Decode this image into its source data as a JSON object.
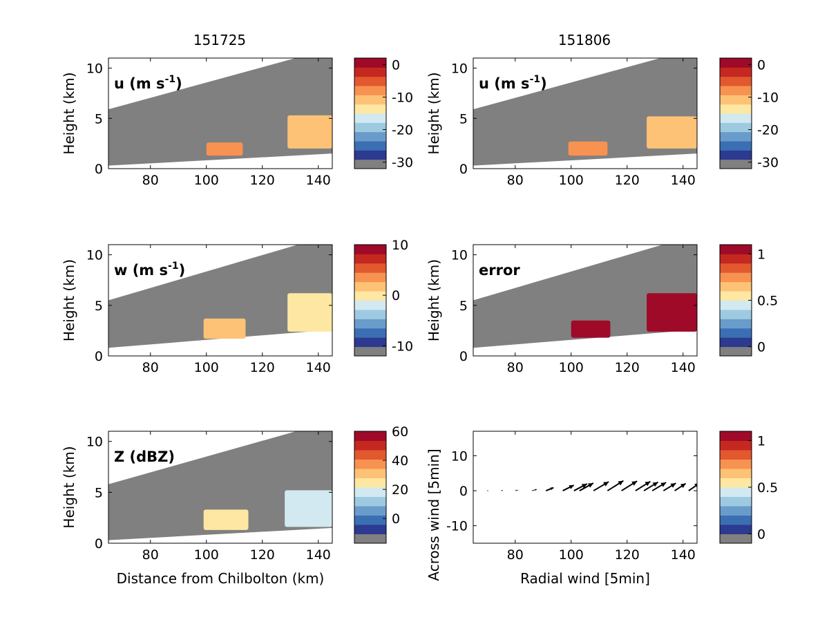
{
  "figure": {
    "column_titles": [
      "151725",
      "151806"
    ]
  },
  "colors": {
    "masked_gray": "#808080",
    "colormap": [
      "#808080",
      "#2c3a8f",
      "#3b6fb3",
      "#6a9ccb",
      "#9ecae1",
      "#d2e9f1",
      "#fde7a2",
      "#fdc276",
      "#f79250",
      "#e2582f",
      "#c4281f",
      "#9e0a28"
    ]
  },
  "chart_data": [
    {
      "type": "heatmap",
      "id": "u_151725",
      "column": "151725",
      "label": "u (m s",
      "label_sup": "-1",
      "label_close": ")",
      "ylabel": "Height (km)",
      "xlabel": "",
      "xlim": [
        65,
        145
      ],
      "ylim": [
        0,
        11
      ],
      "xticks": [
        "80",
        "100",
        "120",
        "140"
      ],
      "yticks": [
        "0",
        "5",
        "10"
      ],
      "colorbar_ticks": [
        "0",
        "-10",
        "-20",
        "-30"
      ],
      "colorbar_range": [
        -32,
        2
      ],
      "colorbar_tick_values": [
        0,
        -10,
        -20,
        -30
      ],
      "beam_bottom": [
        [
          65,
          0.3
        ],
        [
          145,
          1.5
        ]
      ],
      "beam_top": [
        [
          65,
          5.9
        ],
        [
          145,
          12.0
        ]
      ],
      "echoes": [
        {
          "x": [
            100,
            113
          ],
          "y": [
            1.3,
            2.6
          ],
          "value": -9
        },
        {
          "x": [
            129,
            145
          ],
          "y": [
            2.0,
            5.3
          ],
          "value": -12
        }
      ]
    },
    {
      "type": "heatmap",
      "id": "u_151806",
      "column": "151806",
      "label": "u (m s",
      "label_sup": "-1",
      "label_close": ")",
      "ylabel": "Height (km)",
      "xlabel": "",
      "xlim": [
        65,
        145
      ],
      "ylim": [
        0,
        11
      ],
      "xticks": [
        "80",
        "100",
        "120",
        "140"
      ],
      "yticks": [
        "0",
        "5",
        "10"
      ],
      "colorbar_ticks": [
        "0",
        "-10",
        "-20",
        "-30"
      ],
      "colorbar_range": [
        -32,
        2
      ],
      "colorbar_tick_values": [
        0,
        -10,
        -20,
        -30
      ],
      "beam_bottom": [
        [
          65,
          0.3
        ],
        [
          145,
          1.5
        ]
      ],
      "beam_top": [
        [
          65,
          5.9
        ],
        [
          145,
          12.0
        ]
      ],
      "echoes": [
        {
          "x": [
            99,
            113
          ],
          "y": [
            1.3,
            2.7
          ],
          "value": -9
        },
        {
          "x": [
            127,
            145
          ],
          "y": [
            2.0,
            5.2
          ],
          "value": -12
        }
      ]
    },
    {
      "type": "heatmap",
      "id": "w_151725",
      "column": "151725",
      "label": "w (m s",
      "label_sup": "-1",
      "label_close": ")",
      "ylabel": "Height (km)",
      "xlabel": "",
      "xlim": [
        65,
        145
      ],
      "ylim": [
        0,
        11
      ],
      "xticks": [
        "80",
        "100",
        "120",
        "140"
      ],
      "yticks": [
        "0",
        "5",
        "10"
      ],
      "colorbar_ticks": [
        "10",
        "0",
        "-10"
      ],
      "colorbar_range": [
        -12,
        10
      ],
      "colorbar_tick_values": [
        10,
        0,
        -10
      ],
      "beam_bottom": [
        [
          65,
          0.8
        ],
        [
          145,
          2.6
        ]
      ],
      "beam_top": [
        [
          65,
          5.5
        ],
        [
          145,
          12.0
        ]
      ],
      "echoes": [
        {
          "x": [
            99,
            114
          ],
          "y": [
            1.7,
            3.7
          ],
          "value": 0
        },
        {
          "x": [
            129,
            145
          ],
          "y": [
            2.4,
            6.2
          ],
          "value": -2
        }
      ]
    },
    {
      "type": "heatmap",
      "id": "error_151806",
      "column": "151806",
      "label": "error",
      "label_sup": "",
      "label_close": "",
      "ylabel": "Height (km)",
      "xlabel": "",
      "xlim": [
        65,
        145
      ],
      "ylim": [
        0,
        11
      ],
      "xticks": [
        "80",
        "100",
        "120",
        "140"
      ],
      "yticks": [
        "0",
        "5",
        "10"
      ],
      "colorbar_ticks": [
        "1",
        "0.5",
        "0"
      ],
      "colorbar_range": [
        -0.1,
        1.1
      ],
      "colorbar_tick_values": [
        1,
        0.5,
        0
      ],
      "beam_bottom": [
        [
          65,
          0.8
        ],
        [
          145,
          2.6
        ]
      ],
      "beam_top": [
        [
          65,
          5.5
        ],
        [
          145,
          12.0
        ]
      ],
      "echoes": [
        {
          "x": [
            100,
            114
          ],
          "y": [
            1.8,
            3.5
          ],
          "value": 1
        },
        {
          "x": [
            127,
            145
          ],
          "y": [
            2.4,
            6.2
          ],
          "value": 1
        }
      ]
    },
    {
      "type": "heatmap",
      "id": "Z_151725",
      "column": "151725",
      "label": "Z (dBZ)",
      "label_sup": "",
      "label_close": "",
      "ylabel": "Height (km)",
      "xlabel": "Distance from Chilbolton (km)",
      "xlim": [
        65,
        145
      ],
      "ylim": [
        0,
        11
      ],
      "xticks": [
        "80",
        "100",
        "120",
        "140"
      ],
      "yticks": [
        "0",
        "5",
        "10"
      ],
      "colorbar_ticks": [
        "60",
        "40",
        "20",
        "0"
      ],
      "colorbar_range": [
        -17,
        60
      ],
      "colorbar_tick_values": [
        60,
        40,
        20,
        0
      ],
      "beam_bottom": [
        [
          65,
          0.3
        ],
        [
          145,
          1.5
        ]
      ],
      "beam_top": [
        [
          65,
          5.8
        ],
        [
          145,
          12.0
        ]
      ],
      "echoes": [
        {
          "x": [
            99,
            115
          ],
          "y": [
            1.3,
            3.3
          ],
          "value": 18
        },
        {
          "x": [
            128,
            145
          ],
          "y": [
            1.6,
            5.2
          ],
          "value": 15
        }
      ]
    },
    {
      "type": "scatter",
      "id": "wind_vectors",
      "column": "151806",
      "label": "",
      "xlabel": "Radial wind [5min]",
      "ylabel": "Across wind [5min]",
      "xlim": [
        65,
        145
      ],
      "ylim": [
        -15,
        17
      ],
      "xticks": [
        "80",
        "100",
        "120",
        "140"
      ],
      "yticks": [
        "-10",
        "0",
        "10"
      ],
      "colorbar_ticks": [
        "1",
        "0.5",
        "0"
      ],
      "colorbar_range": [
        -0.1,
        1.1
      ],
      "colorbar_tick_values": [
        1,
        0.5,
        0
      ],
      "vectors": [
        {
          "x": 70,
          "y": 0,
          "u": 0.3,
          "v": 0.0
        },
        {
          "x": 75,
          "y": 0,
          "u": 0.5,
          "v": 0.1
        },
        {
          "x": 80,
          "y": 0,
          "u": 0.8,
          "v": 0.2
        },
        {
          "x": 86,
          "y": 0,
          "u": 1.4,
          "v": 0.4
        },
        {
          "x": 91,
          "y": 0,
          "u": 2.2,
          "v": 0.9
        },
        {
          "x": 97,
          "y": 0,
          "u": 3.2,
          "v": 1.6
        },
        {
          "x": 101,
          "y": 0,
          "u": 3.8,
          "v": 2.0
        },
        {
          "x": 103,
          "y": 0,
          "u": 4.0,
          "v": 2.2
        },
        {
          "x": 108,
          "y": 0,
          "u": 4.4,
          "v": 2.6
        },
        {
          "x": 113,
          "y": 0,
          "u": 4.6,
          "v": 2.9
        },
        {
          "x": 118,
          "y": 0,
          "u": 4.5,
          "v": 2.8
        },
        {
          "x": 123,
          "y": 0,
          "u": 4.3,
          "v": 2.7
        },
        {
          "x": 126,
          "y": 0,
          "u": 4.1,
          "v": 2.5
        },
        {
          "x": 129,
          "y": 0,
          "u": 4.0,
          "v": 2.4
        },
        {
          "x": 133,
          "y": 0,
          "u": 3.6,
          "v": 2.2
        },
        {
          "x": 137,
          "y": 0,
          "u": 3.2,
          "v": 2.1
        },
        {
          "x": 142,
          "y": 0,
          "u": 3.2,
          "v": 2.2
        }
      ]
    }
  ]
}
